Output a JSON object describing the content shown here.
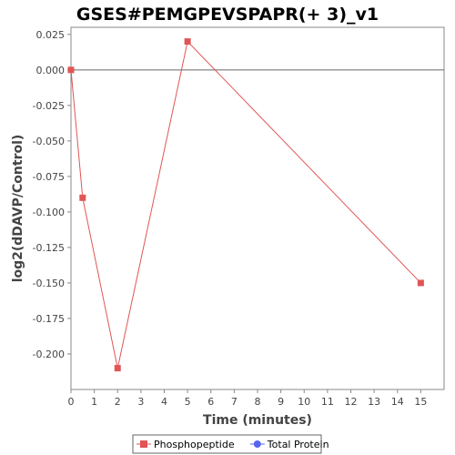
{
  "chart_data": {
    "type": "line",
    "title": "GSES#PEMGPEVSPAPR(+ 3)_v1",
    "xlabel": "Time (minutes)",
    "ylabel": "log2(dDAVP/Control)",
    "xlim": [
      0,
      16
    ],
    "ylim": [
      -0.225,
      0.03
    ],
    "x_ticks": [
      0,
      1,
      2,
      3,
      4,
      5,
      6,
      7,
      8,
      9,
      10,
      11,
      12,
      13,
      14,
      15
    ],
    "y_ticks": [
      0.025,
      0.0,
      -0.025,
      -0.05,
      -0.075,
      -0.1,
      -0.125,
      -0.15,
      -0.175,
      -0.2
    ],
    "y_tick_labels": [
      "0.025",
      "0.000",
      "-0.025",
      "-0.050",
      "-0.075",
      "-0.100",
      "-0.125",
      "-0.150",
      "-0.175",
      "-0.200"
    ],
    "grid": false,
    "zero_line": true,
    "legend_position": "bottom",
    "series": [
      {
        "name": "Phosphopeptide",
        "color": "#e05555",
        "marker": "square",
        "points": [
          {
            "x": 0,
            "y": 0.0
          },
          {
            "x": 0.5,
            "y": -0.09
          },
          {
            "x": 2,
            "y": -0.21
          },
          {
            "x": 5,
            "y": 0.02
          },
          {
            "x": 15,
            "y": -0.15
          }
        ]
      },
      {
        "name": "Total Protein",
        "color": "#5566ee",
        "marker": "circle",
        "points": []
      }
    ]
  }
}
